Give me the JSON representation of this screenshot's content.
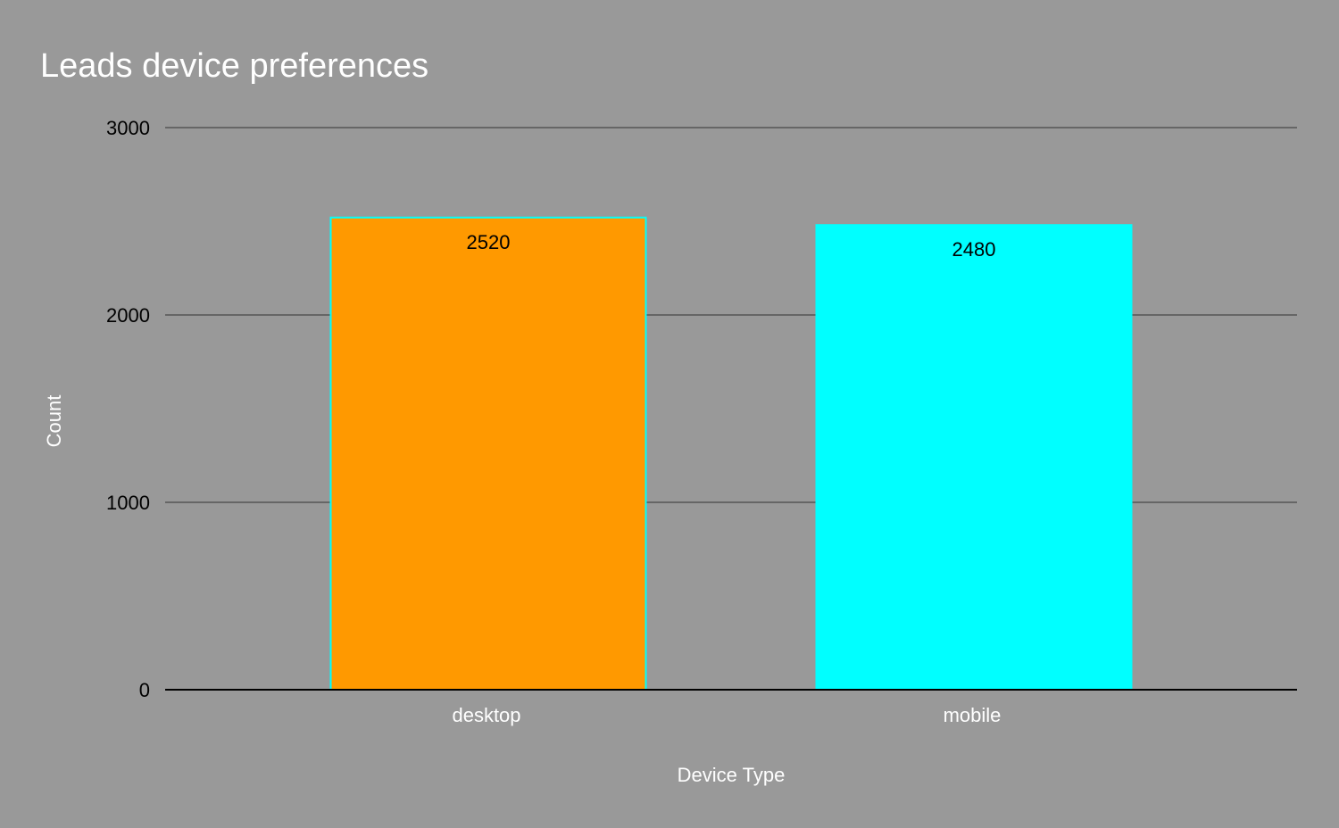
{
  "chart_data": {
    "type": "bar",
    "title": "Leads device preferences",
    "xlabel": "Device Type",
    "ylabel": "Count",
    "categories": [
      "desktop",
      "mobile"
    ],
    "values": [
      2520,
      2480
    ],
    "value_labels": [
      "2520",
      "2480"
    ],
    "bar_colors": [
      "#ff9900",
      "#00ffff"
    ],
    "bar_outline_color": "#00ffff",
    "ylim": [
      0,
      3000
    ],
    "yticks": [
      0,
      1000,
      2000,
      3000
    ],
    "ytick_labels": [
      "0",
      "1000",
      "2000",
      "3000"
    ],
    "grid": true,
    "legend": "none",
    "background_color": "#999999",
    "gridline_color": "#666666",
    "baseline_color": "#000000"
  }
}
